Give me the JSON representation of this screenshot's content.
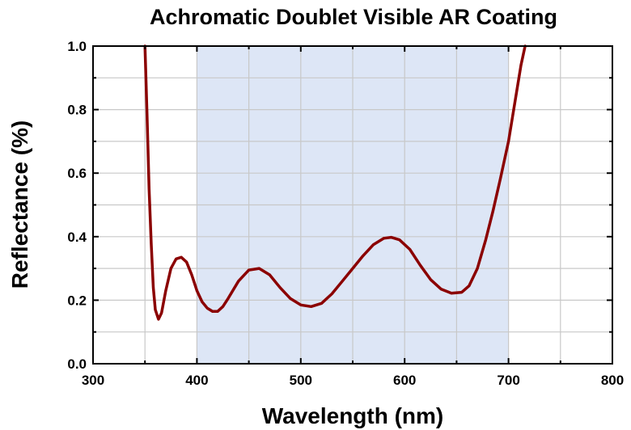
{
  "chart_data": {
    "type": "line",
    "title": "Achromatic Doublet Visible AR Coating",
    "xlabel": "Wavelength (nm)",
    "ylabel": "Reflectance (%)",
    "xlim": [
      300,
      800
    ],
    "ylim": [
      0,
      1.0
    ],
    "x_ticks": [
      "300",
      "400",
      "500",
      "600",
      "700",
      "800"
    ],
    "y_ticks": [
      "0.0",
      "0.2",
      "0.4",
      "0.6",
      "0.8",
      "1.0"
    ],
    "grid": true,
    "highlight_band": {
      "x_start": 400,
      "x_end": 700,
      "color": "#dde6f6"
    },
    "series": [
      {
        "color": "#8b0000",
        "x": [
          350,
          352,
          354,
          356,
          358,
          360,
          363,
          366,
          370,
          375,
          380,
          385,
          390,
          395,
          400,
          405,
          410,
          415,
          420,
          425,
          430,
          440,
          450,
          460,
          470,
          480,
          490,
          500,
          510,
          520,
          530,
          540,
          550,
          560,
          570,
          580,
          587,
          595,
          605,
          615,
          625,
          635,
          645,
          655,
          662,
          670,
          678,
          685,
          692,
          700,
          706,
          712,
          716
        ],
        "y": [
          1.0,
          0.78,
          0.55,
          0.38,
          0.24,
          0.17,
          0.14,
          0.16,
          0.23,
          0.3,
          0.33,
          0.335,
          0.32,
          0.28,
          0.23,
          0.195,
          0.175,
          0.165,
          0.165,
          0.18,
          0.205,
          0.26,
          0.295,
          0.3,
          0.28,
          0.24,
          0.205,
          0.185,
          0.18,
          0.19,
          0.22,
          0.26,
          0.3,
          0.34,
          0.375,
          0.395,
          0.398,
          0.39,
          0.36,
          0.31,
          0.265,
          0.235,
          0.222,
          0.225,
          0.245,
          0.3,
          0.39,
          0.48,
          0.58,
          0.7,
          0.82,
          0.94,
          1.0
        ]
      }
    ]
  }
}
